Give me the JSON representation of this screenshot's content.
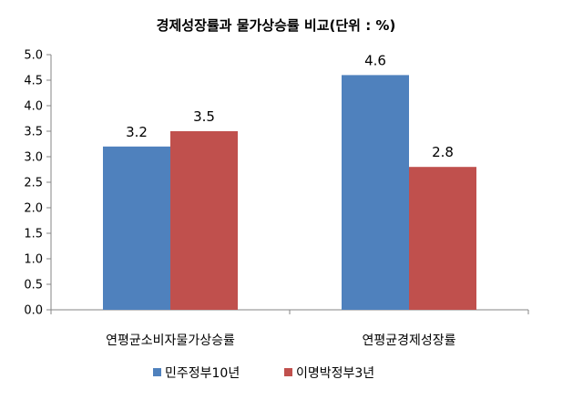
{
  "chart_data": {
    "type": "bar",
    "title": "경제성장률과  물가상승률 비교(단위 : %)",
    "xlabel": "",
    "ylabel": "",
    "categories": [
      "연평균소비자물가상승률",
      "연평균경제성장률"
    ],
    "series": [
      {
        "name": "민주정부10년",
        "values": [
          3.2,
          4.6
        ],
        "color": "#4F81BD"
      },
      {
        "name": "이명박정부3년",
        "values": [
          3.5,
          2.8
        ],
        "color": "#C0504D"
      }
    ],
    "ylim": [
      0,
      5
    ],
    "yticks": [
      "0.0",
      "0.5",
      "1.0",
      "1.5",
      "2.0",
      "2.5",
      "3.0",
      "3.5",
      "4.0",
      "4.5",
      "5.0"
    ],
    "data_labels": true,
    "grid": false,
    "legend_position": "bottom"
  }
}
